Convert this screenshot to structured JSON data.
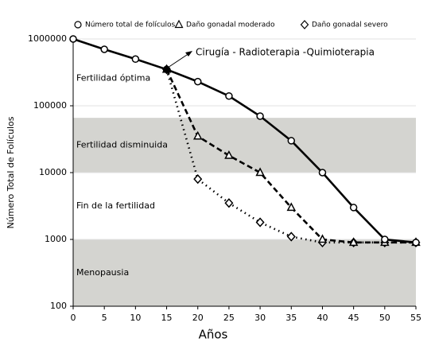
{
  "chart_data": {
    "type": "line",
    "x_label": "Años",
    "y_label": "Número Total de Folículos",
    "annotation": "Cirugía - Radioterapia  -Quimioterapia",
    "x": [
      0,
      5,
      10,
      15,
      20,
      25,
      30,
      35,
      40,
      45,
      50,
      55
    ],
    "xlim": [
      0,
      55
    ],
    "xticks": [
      0,
      5,
      10,
      15,
      20,
      25,
      30,
      35,
      40,
      45,
      50,
      55
    ],
    "ylim": [
      100,
      1000000
    ],
    "yticks": [
      100,
      1000,
      10000,
      100000,
      1000000
    ],
    "log_y": true,
    "grid": true,
    "zones": [
      {
        "label": "Fertilidad óptima",
        "range": [
          66000,
          1000000
        ],
        "color": "#ffffff"
      },
      {
        "label": "Fertilidad disminuida",
        "range": [
          10000,
          66000
        ],
        "color": "#d4d4d0"
      },
      {
        "label": "Fin de la fertilidad",
        "range": [
          1000,
          10000
        ],
        "color": "#ffffff"
      },
      {
        "label": "Menopausia",
        "range": [
          100,
          1000
        ],
        "color": "#d4d4d0"
      }
    ],
    "series": [
      {
        "name": "Número total de folículos",
        "color": "#000000",
        "dash": "solid",
        "marker": "circle",
        "values": [
          1000000,
          700000,
          500000,
          350000,
          230000,
          140000,
          70000,
          30000,
          10000,
          3000,
          1000,
          900
        ]
      },
      {
        "name": "Daño gonadal moderado",
        "color": "#000000",
        "dash": "dashed",
        "marker": "triangle",
        "values": [
          null,
          null,
          null,
          350000,
          35000,
          18000,
          10000,
          3000,
          1000,
          900,
          900,
          900
        ]
      },
      {
        "name": "Daño gonadal severo",
        "color": "#000000",
        "dash": "dotted",
        "marker": "diamond",
        "values": [
          null,
          null,
          null,
          350000,
          8000,
          3500,
          1800,
          1100,
          900,
          900,
          900,
          900
        ]
      }
    ]
  }
}
